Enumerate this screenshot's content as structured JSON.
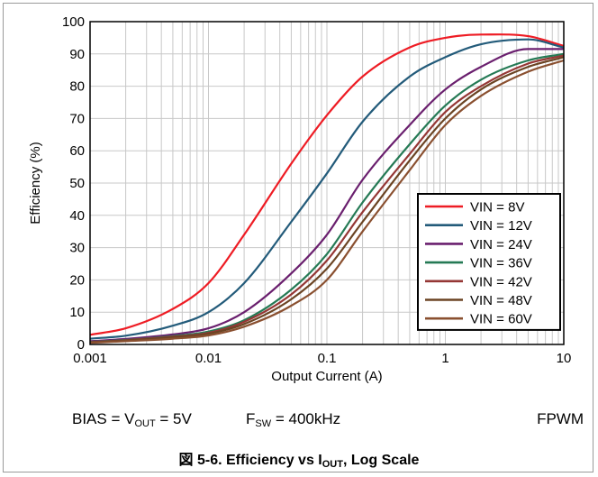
{
  "chart_data": {
    "type": "line",
    "xscale": "log",
    "xlim": [
      0.001,
      10
    ],
    "ylim": [
      0,
      100
    ],
    "xlabel": "Output Current (A)",
    "ylabel": "Efficiency (%)",
    "xticks": [
      "0.001",
      "0.01",
      "0.1",
      "1",
      "10"
    ],
    "yticks": [
      "0",
      "10",
      "20",
      "30",
      "40",
      "50",
      "60",
      "70",
      "80",
      "90",
      "100"
    ],
    "grid": true,
    "legend_position": "bottom-right",
    "x": [
      0.001,
      0.002,
      0.005,
      0.01,
      0.02,
      0.05,
      0.1,
      0.2,
      0.5,
      1,
      2,
      5,
      10
    ],
    "series": [
      {
        "name": "VIN = 8V",
        "color": "#ee1c24",
        "values": [
          3,
          5,
          11,
          19,
          34,
          56,
          71,
          83,
          92,
          95,
          96,
          95.5,
          92.5
        ]
      },
      {
        "name": "VIN = 12V",
        "color": "#235b7a",
        "values": [
          1.8,
          2.7,
          5.8,
          10,
          19,
          38,
          53,
          69,
          83,
          89,
          93,
          94.5,
          92
        ]
      },
      {
        "name": "VIN = 24V",
        "color": "#6a1f6e",
        "values": [
          1,
          1.7,
          3.1,
          5,
          10,
          22,
          34,
          51,
          68,
          79,
          86,
          91.5,
          91.5
        ]
      },
      {
        "name": "VIN = 36V",
        "color": "#257a55",
        "values": [
          0.8,
          1.4,
          2.6,
          4,
          7.5,
          17,
          28,
          44,
          62,
          74,
          82,
          88,
          90
        ]
      },
      {
        "name": "VIN = 42V",
        "color": "#953735",
        "values": [
          0.7,
          1.3,
          2.4,
          3.6,
          7,
          15.5,
          26,
          41,
          59,
          72,
          80,
          87,
          89.5
        ]
      },
      {
        "name": "VIN = 48V",
        "color": "#6b4423",
        "values": [
          0.6,
          1.2,
          2.2,
          3.3,
          6.3,
          14,
          23.5,
          38,
          57,
          70,
          79,
          86,
          89
        ]
      },
      {
        "name": "VIN = 60V",
        "color": "#8a5030",
        "values": [
          0.5,
          1,
          1.8,
          2.8,
          5.5,
          12,
          20,
          35,
          54,
          68,
          77,
          84.5,
          88
        ]
      }
    ]
  },
  "conditions": {
    "bias_prefix": "BIAS = V",
    "bias_sub": "OUT",
    "bias_suffix": " = 5V",
    "fsw_prefix": "F",
    "fsw_sub": "SW",
    "fsw_suffix": " = 400kHz",
    "mode": "FPWM"
  },
  "caption": {
    "prefix": "図 5-6. Efficiency vs I",
    "sub": "OUT",
    "suffix": ", Log Scale"
  }
}
